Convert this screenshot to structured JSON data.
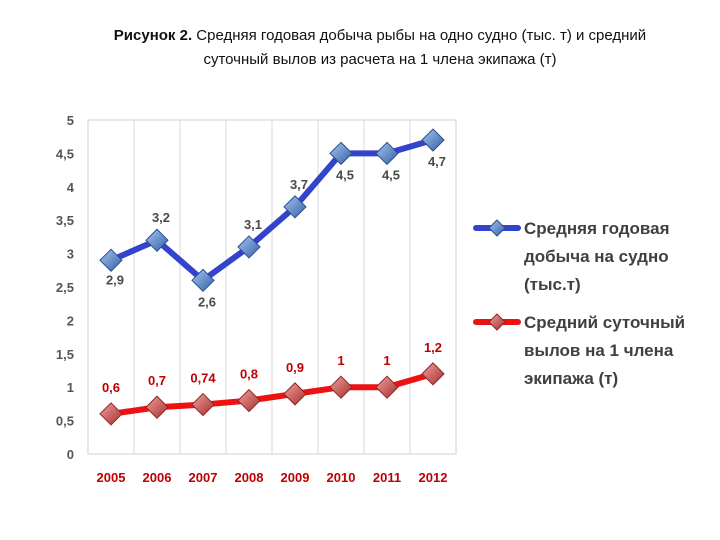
{
  "caption": {
    "prefix": "Рисунок 2.",
    "line1": " Средняя годовая добыча рыбы на одно судно (тыс. т) и средний",
    "line2": "суточный вылов из расчета на 1 члена экипажа (т)"
  },
  "chart_data": {
    "type": "line",
    "x": [
      "2005",
      "2006",
      "2007",
      "2008",
      "2009",
      "2010",
      "2011",
      "2012"
    ],
    "yticks": [
      "0",
      "0,5",
      "1",
      "1,5",
      "2",
      "2,5",
      "3",
      "3,5",
      "4",
      "4,5",
      "5"
    ],
    "ylim": [
      0,
      5
    ],
    "grid": "vertical",
    "legend_position": "right",
    "series": [
      {
        "name_lines": [
          "Средняя годовая",
          "добыча на судно",
          "(тыс.т)"
        ],
        "color": "#3344cc",
        "marker_color": "#5b86c8",
        "values": [
          2.9,
          3.2,
          2.6,
          3.1,
          3.7,
          4.5,
          4.5,
          4.7
        ],
        "labels": [
          "2,9",
          "3,2",
          "2,6",
          "3,1",
          "3,7",
          "4,5",
          "4,5",
          "4,7"
        ]
      },
      {
        "name_lines": [
          "Средний суточный",
          "вылов на 1 члена",
          "экипажа (т)"
        ],
        "color": "#ee1111",
        "marker_color": "#c0504d",
        "values": [
          0.6,
          0.7,
          0.74,
          0.8,
          0.9,
          1,
          1,
          1.2
        ],
        "labels": [
          "0,6",
          "0,7",
          "0,74",
          "0,8",
          "0,9",
          "1",
          "1",
          "1,2"
        ]
      }
    ]
  }
}
